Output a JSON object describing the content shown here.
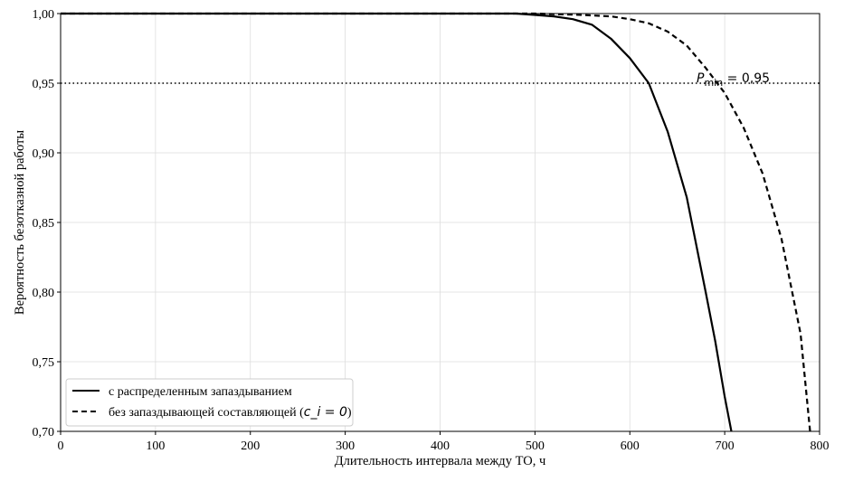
{
  "chart_data": {
    "type": "line",
    "xlabel": "Длительность интервала между ТО, ч",
    "ylabel": "Вероятность безотказной работы",
    "xlim": [
      0,
      800
    ],
    "ylim": [
      0.7,
      1.0
    ],
    "xticks": [
      0,
      100,
      200,
      300,
      400,
      500,
      600,
      700,
      800
    ],
    "xtick_labels": [
      "0",
      "100",
      "200",
      "300",
      "400",
      "500",
      "600",
      "700",
      "800"
    ],
    "yticks": [
      0.7,
      0.75,
      0.8,
      0.85,
      0.9,
      0.95,
      1.0
    ],
    "ytick_labels": [
      "0,70",
      "0,75",
      "0,80",
      "0,85",
      "0,90",
      "0,95",
      "1,00"
    ],
    "grid": true,
    "legend_position": "lower-left",
    "series": [
      {
        "name": "с распределенным запаздыванием",
        "style": "solid",
        "color": "#000000",
        "x": [
          0,
          100,
          200,
          300,
          400,
          480,
          500,
          520,
          540,
          560,
          580,
          600,
          620,
          640,
          660,
          680,
          690,
          700,
          707
        ],
        "y": [
          1.0,
          1.0,
          1.0,
          1.0,
          1.0,
          1.0,
          0.999,
          0.998,
          0.996,
          0.992,
          0.982,
          0.968,
          0.95,
          0.915,
          0.868,
          0.8,
          0.765,
          0.725,
          0.7
        ]
      },
      {
        "name_prefix": "без запаздывающей составляющей (",
        "name_math": "c_i = 0",
        "name_suffix": ")",
        "style": "dashed",
        "color": "#000000",
        "x": [
          0,
          100,
          200,
          300,
          400,
          500,
          550,
          580,
          600,
          620,
          640,
          660,
          680,
          700,
          720,
          740,
          760,
          780,
          790
        ],
        "y": [
          1.0,
          1.0,
          1.0,
          1.0,
          1.0,
          1.0,
          0.999,
          0.998,
          0.996,
          0.993,
          0.987,
          0.977,
          0.961,
          0.943,
          0.918,
          0.885,
          0.838,
          0.77,
          0.7
        ]
      }
    ],
    "reference_line": {
      "y": 0.95,
      "style": "dotted",
      "label_symbol": "P",
      "label_sub": "min",
      "label_value": " = 0,95"
    }
  }
}
